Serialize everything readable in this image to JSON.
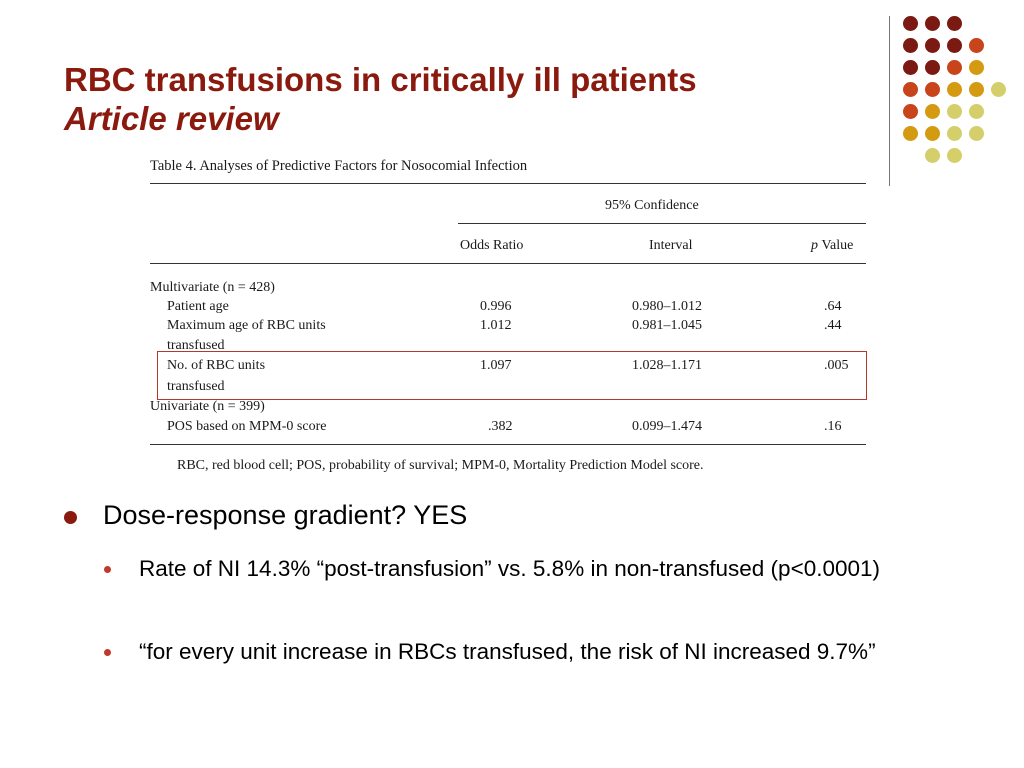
{
  "slide": {
    "title": "RBC transfusions in critically ill patients",
    "subtitle": "Article review"
  },
  "decoration": {
    "colors": [
      "#7a1a12",
      "#c8441a",
      "#d49a12",
      "#d4cf6a"
    ],
    "dot_grid": [
      [
        0,
        0,
        0,
        null,
        null
      ],
      [
        0,
        0,
        0,
        1,
        null
      ],
      [
        0,
        0,
        1,
        2,
        null
      ],
      [
        1,
        1,
        2,
        2,
        3
      ],
      [
        1,
        2,
        3,
        3,
        null
      ],
      [
        2,
        2,
        3,
        3,
        null
      ],
      [
        3,
        3,
        null,
        null,
        null
      ]
    ]
  },
  "table": {
    "caption": "Table 4. Analyses of Predictive Factors for Nosocomial Infection",
    "group_header": "95% Confidence",
    "columns": [
      "Odds Ratio",
      "Interval",
      "p Value"
    ],
    "sections": [
      {
        "label": "Multivariate (n = 428)",
        "rows": [
          {
            "factor": "Patient age",
            "factor_cont": "",
            "odds_ratio": "0.996",
            "interval": "0.980–1.012",
            "p_value": ".64"
          },
          {
            "factor": "Maximum age of RBC units",
            "factor_cont": "transfused",
            "odds_ratio": "1.012",
            "interval": "0.981–1.045",
            "p_value": ".44"
          },
          {
            "factor": "No. of RBC units",
            "factor_cont": "transfused",
            "odds_ratio": "1.097",
            "interval": "1.028–1.171",
            "p_value": ".005"
          }
        ]
      },
      {
        "label": "Univariate (n = 399)",
        "rows": [
          {
            "factor": "POS based on MPM-0 score",
            "factor_cont": "",
            "odds_ratio": ".382",
            "interval": "0.099–1.474",
            "p_value": ".16"
          }
        ]
      }
    ],
    "footnote": "RBC, red blood cell; POS, probability of survival; MPM-0, Mortality Prediction Model score."
  },
  "bullets": [
    {
      "text": "Dose-response gradient?  YES",
      "children": [
        {
          "text": "Rate of NI 14.3% “post-transfusion” vs. 5.8% in non-transfused (p<0.0001)"
        },
        {
          "text": "“for every unit increase in RBCs transfused, the risk of NI increased 9.7%”"
        }
      ]
    }
  ]
}
